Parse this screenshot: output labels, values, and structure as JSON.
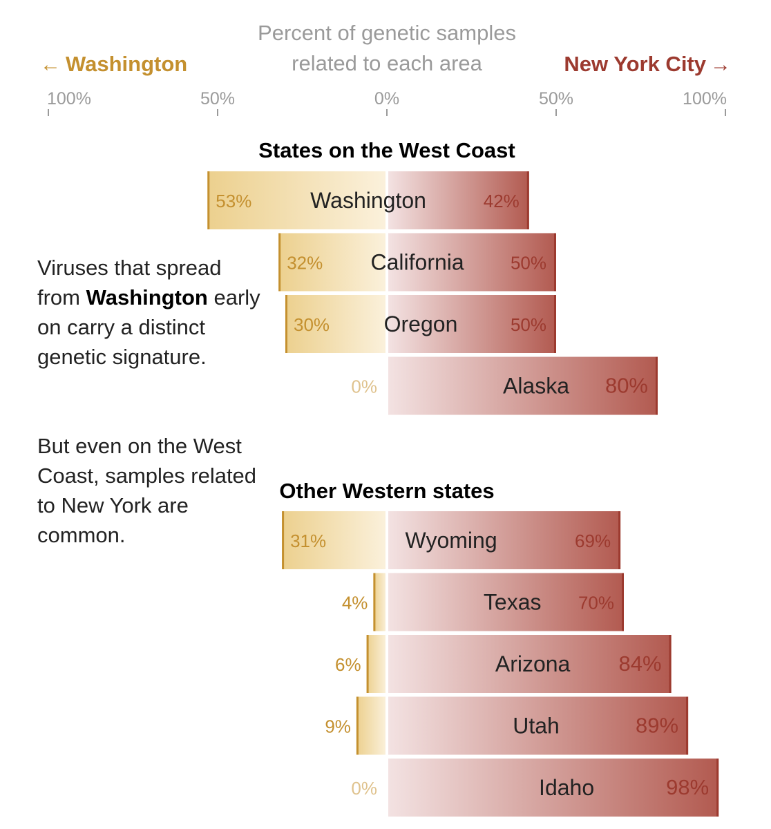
{
  "colors": {
    "washington": "#c4902f",
    "washington_light": "#f3e2b8",
    "nyc": "#9c3a2f",
    "nyc_light": "#f0dada",
    "axis_gray": "#9a9a9a",
    "label_dark": "#222222"
  },
  "header": {
    "title_line1": "Percent of genetic samples",
    "title_line2": "related to each area",
    "left_label": "Washington",
    "left_arrow": "←",
    "right_label": "New York City",
    "right_arrow": "→"
  },
  "annotation": {
    "para1_before": "Viruses that spread from ",
    "para1_bold": "Washington",
    "para1_after": " early on carry a distinct genetic signature.",
    "para2": "But even on the West Coast, samples related to New York are common."
  },
  "chart_data": {
    "type": "bar",
    "orientation": "horizontal-diverging",
    "axis": {
      "ticks": [
        -100,
        -50,
        0,
        50,
        100
      ],
      "tick_labels": [
        "100%",
        "50%",
        "0%",
        "50%",
        "100%"
      ],
      "range": [
        -100,
        100
      ]
    },
    "groups": [
      {
        "title": "States on the West Coast",
        "rows": [
          {
            "state": "Washington",
            "washington": 53,
            "nyc": 42,
            "washington_label": "53%",
            "nyc_label": "42%"
          },
          {
            "state": "California",
            "washington": 32,
            "nyc": 50,
            "washington_label": "32%",
            "nyc_label": "50%"
          },
          {
            "state": "Oregon",
            "washington": 30,
            "nyc": 50,
            "washington_label": "30%",
            "nyc_label": "50%"
          },
          {
            "state": "Alaska",
            "washington": 0,
            "nyc": 80,
            "washington_label": "0%",
            "nyc_label": "80%"
          }
        ]
      },
      {
        "title": "Other Western states",
        "rows": [
          {
            "state": "Wyoming",
            "washington": 31,
            "nyc": 69,
            "washington_label": "31%",
            "nyc_label": "69%"
          },
          {
            "state": "Texas",
            "washington": 4,
            "nyc": 70,
            "washington_label": "4%",
            "nyc_label": "70%"
          },
          {
            "state": "Arizona",
            "washington": 6,
            "nyc": 84,
            "washington_label": "6%",
            "nyc_label": "84%"
          },
          {
            "state": "Utah",
            "washington": 9,
            "nyc": 89,
            "washington_label": "9%",
            "nyc_label": "89%"
          },
          {
            "state": "Idaho",
            "washington": 0,
            "nyc": 98,
            "washington_label": "0%",
            "nyc_label": "98%"
          }
        ]
      }
    ]
  }
}
